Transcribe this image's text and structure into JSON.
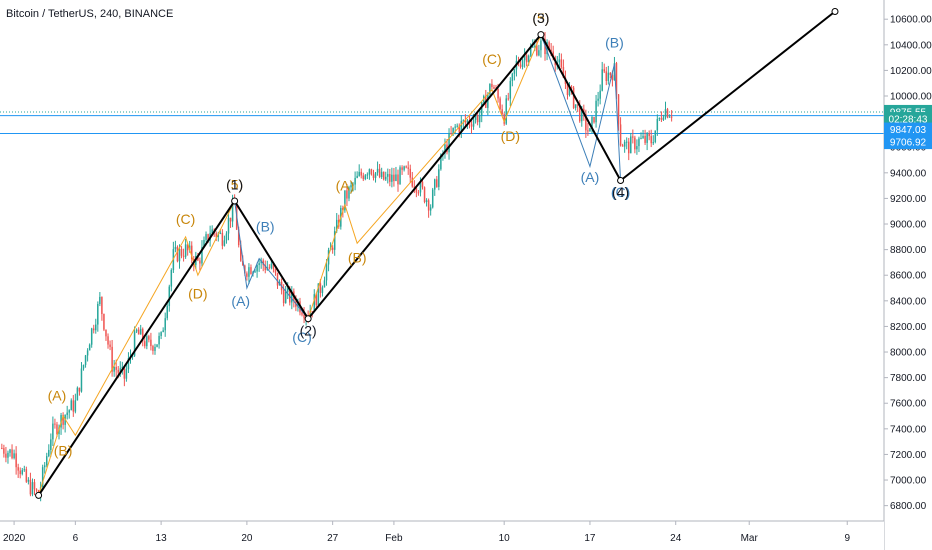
{
  "chart_data": {
    "type": "candlestick",
    "symbol_title": "Bitcoin / TetherUS, 240, BINANCE",
    "y_ticks": [
      6800,
      7000,
      7200,
      7400,
      7600,
      7800,
      8000,
      8200,
      8400,
      8600,
      8800,
      9000,
      9200,
      9400,
      9600,
      9800,
      10000,
      10200,
      10400,
      10600
    ],
    "y_tick_labels": [
      "6800.00",
      "7000.00",
      "7200.00",
      "7400.00",
      "7600.00",
      "7800.00",
      "8000.00",
      "8200.00",
      "8400.00",
      "8600.00",
      "8800.00",
      "9000.00",
      "9200.00",
      "9400.00",
      "9600.00",
      "9800.00",
      "10000.00",
      "10200.00",
      "10400.00",
      "10600.00"
    ],
    "ylim": [
      6680,
      10750
    ],
    "xlim": [
      "2019-12-31",
      "2020-03-12"
    ],
    "x_ticks": [
      {
        "date": "2020-01-01",
        "label": "2020"
      },
      {
        "date": "2020-01-06",
        "label": "6"
      },
      {
        "date": "2020-01-13",
        "label": "13"
      },
      {
        "date": "2020-01-20",
        "label": "20"
      },
      {
        "date": "2020-01-27",
        "label": "27"
      },
      {
        "date": "2020-02-01",
        "label": "Feb"
      },
      {
        "date": "2020-02-10",
        "label": "10"
      },
      {
        "date": "2020-02-17",
        "label": "17"
      },
      {
        "date": "2020-02-24",
        "label": "24"
      },
      {
        "date": "2020-03-01",
        "label": "Mar"
      },
      {
        "date": "2020-03-09",
        "label": "9"
      }
    ],
    "price_badges": [
      {
        "label": "9875.55",
        "value": 9875.55,
        "color": "#26a69a"
      },
      {
        "label": "02:28:43",
        "value": 9820,
        "color": "#26a69a"
      },
      {
        "label": "9847.03",
        "value": 9738,
        "color": "#2196f3"
      },
      {
        "label": "9706.92",
        "value": 9640,
        "color": "#2196f3"
      }
    ],
    "horizontal_lines": [
      {
        "value": 9875.55,
        "color": "#26a69a",
        "style": "dotted"
      },
      {
        "value": 9847.03,
        "color": "#2196f3",
        "style": "solid"
      },
      {
        "value": 9706.92,
        "color": "#2196f3",
        "style": "solid"
      }
    ],
    "candle_anchors": [
      {
        "date": "2019-12-31",
        "price": 7250
      },
      {
        "date": "2020-01-01",
        "price": 7200
      },
      {
        "date": "2020-01-02",
        "price": 6980
      },
      {
        "date": "2020-01-03",
        "price": 6880
      },
      {
        "date": "2020-01-04",
        "price": 7350
      },
      {
        "date": "2020-01-05",
        "price": 7500
      },
      {
        "date": "2020-01-06",
        "price": 7600
      },
      {
        "date": "2020-01-07",
        "price": 8050
      },
      {
        "date": "2020-01-08",
        "price": 8400
      },
      {
        "date": "2020-01-09",
        "price": 7900
      },
      {
        "date": "2020-01-10",
        "price": 7800
      },
      {
        "date": "2020-01-11",
        "price": 8150
      },
      {
        "date": "2020-01-12",
        "price": 8050
      },
      {
        "date": "2020-01-13",
        "price": 8100
      },
      {
        "date": "2020-01-14",
        "price": 8750
      },
      {
        "date": "2020-01-15",
        "price": 8800
      },
      {
        "date": "2020-01-16",
        "price": 8700
      },
      {
        "date": "2020-01-17",
        "price": 8950
      },
      {
        "date": "2020-01-18",
        "price": 8900
      },
      {
        "date": "2020-01-19",
        "price": 9150
      },
      {
        "date": "2020-01-19.5",
        "price": 8650
      },
      {
        "date": "2020-01-20",
        "price": 8650
      },
      {
        "date": "2020-01-21",
        "price": 8700
      },
      {
        "date": "2020-01-22",
        "price": 8650
      },
      {
        "date": "2020-01-23",
        "price": 8450
      },
      {
        "date": "2020-01-24",
        "price": 8400
      },
      {
        "date": "2020-01-25",
        "price": 8300
      },
      {
        "date": "2020-01-26",
        "price": 8500
      },
      {
        "date": "2020-01-27",
        "price": 8850
      },
      {
        "date": "2020-01-28",
        "price": 9200
      },
      {
        "date": "2020-01-29",
        "price": 9350
      },
      {
        "date": "2020-01-30",
        "price": 9450
      },
      {
        "date": "2020-01-31",
        "price": 9350
      },
      {
        "date": "2020-02-01",
        "price": 9350
      },
      {
        "date": "2020-02-02",
        "price": 9400
      },
      {
        "date": "2020-02-03",
        "price": 9300
      },
      {
        "date": "2020-02-04",
        "price": 9150
      },
      {
        "date": "2020-02-05",
        "price": 9550
      },
      {
        "date": "2020-02-06",
        "price": 9750
      },
      {
        "date": "2020-02-07",
        "price": 9800
      },
      {
        "date": "2020-02-08",
        "price": 9850
      },
      {
        "date": "2020-02-09",
        "price": 10100
      },
      {
        "date": "2020-02-10",
        "price": 9850
      },
      {
        "date": "2020-02-11",
        "price": 10250
      },
      {
        "date": "2020-02-12",
        "price": 10350
      },
      {
        "date": "2020-02-13",
        "price": 10400
      },
      {
        "date": "2020-02-14",
        "price": 10350
      },
      {
        "date": "2020-02-15",
        "price": 10100
      },
      {
        "date": "2020-02-16",
        "price": 9900
      },
      {
        "date": "2020-02-17",
        "price": 9700
      },
      {
        "date": "2020-02-18",
        "price": 10150
      },
      {
        "date": "2020-02-19",
        "price": 10200
      },
      {
        "date": "2020-02-19.5",
        "price": 9650
      },
      {
        "date": "2020-02-20",
        "price": 9600
      },
      {
        "date": "2020-02-21",
        "price": 9650
      },
      {
        "date": "2020-02-22",
        "price": 9650
      },
      {
        "date": "2020-02-23",
        "price": 9900
      },
      {
        "date": "2020-02-23.7",
        "price": 9875
      }
    ],
    "wave_lines": [
      {
        "points": [
          {
            "date": "2020-01-03",
            "price": 6880
          },
          {
            "date": "2020-01-19",
            "price": 9180
          },
          {
            "date": "2020-01-25",
            "price": 8260
          },
          {
            "date": "2020-02-13",
            "price": 10480
          },
          {
            "date": "2020-02-19.5",
            "price": 9340
          },
          {
            "date": "2020-03-08",
            "price": 10660
          }
        ],
        "color": "#000000",
        "width": 2
      }
    ],
    "sub_wave_lines": [
      {
        "points": [
          {
            "date": "2020-01-03",
            "price": 6880
          },
          {
            "date": "2020-01-05",
            "price": 7500
          },
          {
            "date": "2020-01-06",
            "price": 7350
          },
          {
            "date": "2020-01-15",
            "price": 8900
          },
          {
            "date": "2020-01-16",
            "price": 8600
          },
          {
            "date": "2020-01-19",
            "price": 9180
          }
        ],
        "color": "#f5a623",
        "width": 1
      },
      {
        "points": [
          {
            "date": "2020-01-25",
            "price": 8260
          },
          {
            "date": "2020-01-28",
            "price": 9150
          },
          {
            "date": "2020-01-29",
            "price": 8850
          },
          {
            "date": "2020-02-09",
            "price": 10050
          },
          {
            "date": "2020-02-10",
            "price": 9800
          },
          {
            "date": "2020-02-13",
            "price": 10480
          }
        ],
        "color": "#f5a623",
        "width": 1
      },
      {
        "points": [
          {
            "date": "2020-01-19",
            "price": 9180
          },
          {
            "date": "2020-01-20",
            "price": 8500
          },
          {
            "date": "2020-01-21",
            "price": 8730
          },
          {
            "date": "2020-01-25",
            "price": 8260
          }
        ],
        "color": "#3d7fb8",
        "width": 1
      },
      {
        "points": [
          {
            "date": "2020-02-13",
            "price": 10480
          },
          {
            "date": "2020-02-17",
            "price": 9450
          },
          {
            "date": "2020-02-19",
            "price": 10250
          },
          {
            "date": "2020-02-19.5",
            "price": 9340
          }
        ],
        "color": "#3d7fb8",
        "width": 1
      }
    ],
    "wave_markers": [
      {
        "date": "2020-01-03",
        "price": 6880
      },
      {
        "date": "2020-01-19",
        "price": 9180
      },
      {
        "date": "2020-01-25",
        "price": 8260
      },
      {
        "date": "2020-02-13",
        "price": 10480
      },
      {
        "date": "2020-02-19.5",
        "price": 9340
      },
      {
        "date": "2020-03-08",
        "price": 10660
      }
    ],
    "annotations": [
      {
        "text": "(A)",
        "date": "2020-01-04.5",
        "price": 7620,
        "color": "#c8860a"
      },
      {
        "text": "(B)",
        "date": "2020-01-05",
        "price": 7190,
        "color": "#c8860a"
      },
      {
        "text": "(C)",
        "date": "2020-01-15",
        "price": 9000,
        "color": "#c8860a"
      },
      {
        "text": "(D)",
        "date": "2020-01-16",
        "price": 8420,
        "color": "#c8860a"
      },
      {
        "text": "(5)",
        "date": "2020-01-19",
        "price": 9270,
        "color": "#c8860a"
      },
      {
        "text": "(1)",
        "date": "2020-01-19",
        "price": 9270,
        "color": "#131722"
      },
      {
        "text": "(A)",
        "date": "2020-01-19.5",
        "price": 8360,
        "color": "#3d7fb8"
      },
      {
        "text": "(B)",
        "date": "2020-01-21.5",
        "price": 8940,
        "color": "#3d7fb8"
      },
      {
        "text": "(C)",
        "date": "2020-01-24.5",
        "price": 8080,
        "color": "#3d7fb8"
      },
      {
        "text": "(2)",
        "date": "2020-01-25",
        "price": 8130,
        "color": "#131722"
      },
      {
        "text": "(A)",
        "date": "2020-01-28",
        "price": 9260,
        "color": "#c8860a"
      },
      {
        "text": "(B)",
        "date": "2020-01-29",
        "price": 8700,
        "color": "#c8860a"
      },
      {
        "text": "(C)",
        "date": "2020-02-09",
        "price": 10250,
        "color": "#c8860a"
      },
      {
        "text": "(D)",
        "date": "2020-02-10.5",
        "price": 9650,
        "color": "#c8860a"
      },
      {
        "text": "(5)",
        "date": "2020-02-13",
        "price": 10570,
        "color": "#c8860a"
      },
      {
        "text": "(3)",
        "date": "2020-02-13",
        "price": 10570,
        "color": "#131722"
      },
      {
        "text": "(B)",
        "date": "2020-02-19",
        "price": 10380,
        "color": "#3d7fb8"
      },
      {
        "text": "(A)",
        "date": "2020-02-17",
        "price": 9330,
        "color": "#3d7fb8"
      },
      {
        "text": "(C)",
        "date": "2020-02-19.5",
        "price": 9210,
        "color": "#3d7fb8"
      },
      {
        "text": "(4)",
        "date": "2020-02-19.5",
        "price": 9210,
        "color": "#131722"
      }
    ],
    "colors": {
      "up": "#26a69a",
      "down": "#ef5350",
      "axis_line": "#b2b5be",
      "background": "#ffffff"
    }
  }
}
